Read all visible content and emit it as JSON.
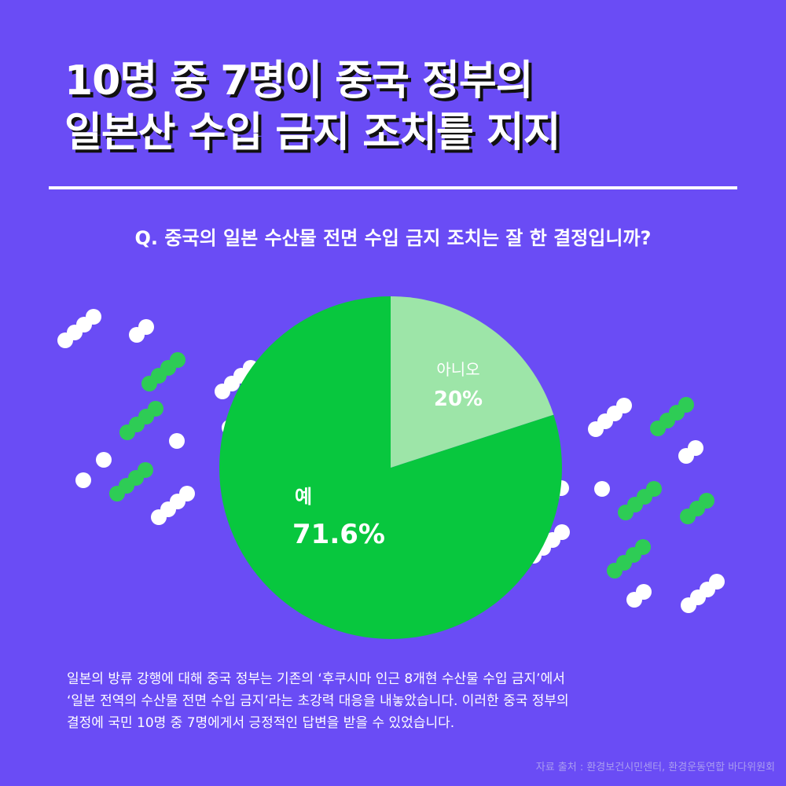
{
  "headline": {
    "line1": "10명 중 7명이 중국 정부의",
    "line2": "일본산 수입 금지 조치를 지지"
  },
  "question": "Q. 중국의 일본 수산물 전면 수입 금지 조치는 잘 한 결정입니까?",
  "chart_data": {
    "type": "pie",
    "slices": [
      {
        "label": "아니오",
        "value": 20,
        "value_label": "20%",
        "color": "#9de5a8"
      },
      {
        "label": "예",
        "value": 71.6,
        "value_label": "71.6%",
        "color": "#08c73e"
      }
    ]
  },
  "colors": {
    "background": "#6a4cf5",
    "dot_green": "#2ecc55",
    "dot_white": "#ffffff"
  },
  "body": {
    "line1": "일본의 방류 강행에 대해 중국 정부는 기존의 ‘후쿠시마 인근 8개현 수산물 수입 금지’에서",
    "line2": "‘일본 전역의 수산물 전면 수입 금지’라는 초강력 대응을 내놓았습니다. 이러한 중국 정부의",
    "line3": "결정에 국민 10명 중 7명에게서 긍정적인 답변을 받을 수 있었습니다."
  },
  "source": "자료 출처 : 환경보건시민센터, 환경운동연합 바다위원회"
}
